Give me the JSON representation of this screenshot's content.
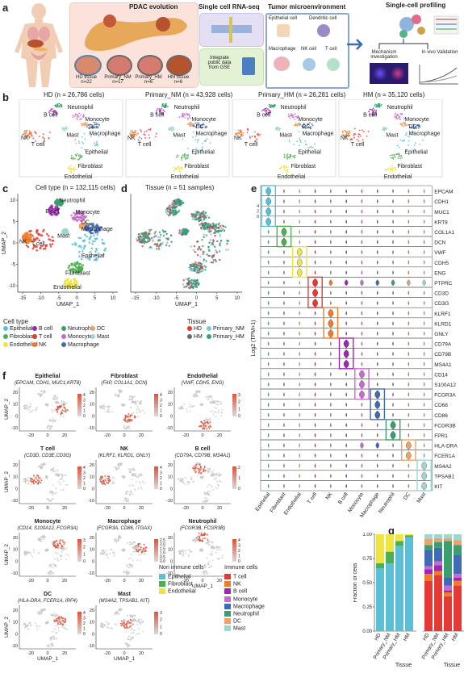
{
  "panel_letters": [
    "a",
    "b",
    "c",
    "d",
    "e",
    "f",
    "g"
  ],
  "colors": {
    "Epithelial": "#5bc0d6",
    "Fibroblast": "#4caf50",
    "Endothelial": "#f0e442",
    "B cell": "#9c27b0",
    "T cell": "#e53935",
    "NK": "#f07c2a",
    "Neutrophil": "#3a9f6f",
    "Monocyte": "#c76bd0",
    "Macrophage": "#3f6bb5",
    "DC": "#e9a46b",
    "Mast": "#9fd6cf",
    "HD": "#e53935",
    "HM": "#6b6b6b",
    "Primary_NM": "#7fc8d0",
    "Primary_HM": "#2aa77a"
  },
  "panel_a": {
    "pdac_title": "PDAC evolution",
    "tissues": [
      {
        "name": "HD tissue",
        "n": "n=22"
      },
      {
        "name": "Primary_NM",
        "n": "n=17"
      },
      {
        "name": "Primary_HM",
        "n": "n=6"
      },
      {
        "name": "HM tissue",
        "n": "n=6"
      }
    ],
    "scrna_title": "Single cell RNA-seq",
    "integrate_text": "Integrate public data from GSE",
    "tme_title": "Tumor microenvironment",
    "tme_cells": [
      "Epithelial cell",
      "Dendritic cell",
      "Macrophage",
      "NK cell",
      "T cell"
    ],
    "profiling_title": "Single-cell profiling",
    "mechanism_text": "Mechanism investigation",
    "invivo_text": "In vivo Validation"
  },
  "panel_b": [
    {
      "title": "HD (n = 26,786 cells)",
      "labels": [
        "Neutrophil",
        "B cell",
        "Monocyte",
        "DC",
        "Macrophage",
        "Mast",
        "NK",
        "T cell",
        "Epithelial",
        "Fibroblast",
        "Endothelial"
      ]
    },
    {
      "title": "Primary_NM (n = 43,928 cells)",
      "labels": [
        "Neutrophil",
        "B cell",
        "Monocyte",
        "DC",
        "Macrophage",
        "Mast",
        "NK",
        "T cell",
        "Epithelial",
        "Fibroblast",
        "Endothelial"
      ]
    },
    {
      "title": "Primary_HM (n = 26,281 cells)",
      "labels": [
        "Neutrophil",
        "B cell",
        "Monocyte",
        "DC",
        "Macrophage",
        "Mast",
        "NK",
        "T cell",
        "Epithelial",
        "Fibroblast",
        "Endothelial"
      ]
    },
    {
      "title": "HM (n = 35,120 cells)",
      "labels": [
        "Neutrophil",
        "B cell",
        "Monocyte",
        "DC",
        "Macrophage",
        "Mast",
        "NK",
        "T cell",
        "Epithelial",
        "Fibroblast",
        "Endothelial"
      ]
    }
  ],
  "panel_c": {
    "title": "Cell type (n = 132,115 cells)",
    "xlabel": "UMAP_1",
    "ylabel": "UMAP_2",
    "xticks": [
      "-15",
      "-10",
      "-5",
      "0",
      "5",
      "10"
    ],
    "yticks": [
      "10",
      "5",
      "0",
      "-5",
      "-10"
    ],
    "labels": [
      "Neutrophil",
      "B cell",
      "Monocyte",
      "DC",
      "Macrophage",
      "Mast",
      "NK",
      "T cell",
      "Epithelial",
      "Fibroblast",
      "Endothelial"
    ],
    "legend_title": "Cell type",
    "legend": [
      "Epithelial",
      "B cell",
      "Neutrophil",
      "DC",
      "Fibroblast",
      "T cell",
      "Monocyte",
      "Mast",
      "Endothelial",
      "NK",
      "Macrophage"
    ]
  },
  "panel_d": {
    "title": "Tissue (n = 51 samples)",
    "xlabel": "UMAP_1",
    "xticks": [
      "-15",
      "-10",
      "-5",
      "0",
      "5",
      "10"
    ],
    "legend_title": "Tissue",
    "legend": [
      "HD",
      "Primary_NM",
      "HM",
      "Primary_HM"
    ]
  },
  "panel_e": {
    "ylabel": "Log2 (TPM+1)",
    "genes": [
      "EPCAM",
      "CDH1",
      "MUC1",
      "KRT8",
      "COL1A1",
      "DCN",
      "VWF",
      "CDH5",
      "ENG",
      "PTPRC",
      "CD3D",
      "CD3G",
      "KLRF1",
      "KLRD1",
      "GNLY",
      "CD79A",
      "CD79B",
      "MS4A1",
      "CD14",
      "S100A12",
      "FCGR3A",
      "CD68",
      "CD86",
      "FCGR3B",
      "FPR1",
      "HLA-DRA",
      "FCER1A",
      "MS4A2",
      "TPSAB1",
      "KIT"
    ],
    "celltypes": [
      "Epithelial",
      "Fibroblast",
      "Endothelial",
      "T cell",
      "NK",
      "B cell",
      "Monocyte",
      "Macrophage",
      "Neutrophil",
      "DC",
      "Mast"
    ],
    "ticks": [
      "0",
      "2",
      "4"
    ]
  },
  "panel_f": {
    "xlabel": "UMAP_1",
    "ylabel": "UMAP_2",
    "plots": [
      {
        "name": "Epithelial",
        "genes": "(EPCAM, CDH1, MUC1,KRT8)",
        "scale": [
          "4",
          "3",
          "2",
          "1",
          "0"
        ]
      },
      {
        "name": "Fibroblast",
        "genes": "(FAP, COL1A1, DCN)",
        "scale": [
          "4",
          "3",
          "2",
          "1",
          "0"
        ]
      },
      {
        "name": "Endothelial",
        "genes": "(VWF, CDH5, ENG)",
        "scale": [
          "3",
          "2",
          "1",
          "0"
        ]
      },
      {
        "name": "T cell",
        "genes": "(CD3D, CD3E,CD3G)",
        "scale": [
          "4",
          "3",
          "2",
          "1",
          "0"
        ]
      },
      {
        "name": "NK",
        "genes": "(KLRF1, KLRD1, GNLY)",
        "scale": [
          "4",
          "3",
          "2",
          "1",
          "0"
        ]
      },
      {
        "name": "B cell",
        "genes": "(CD79A, CD79B, MS4A1)",
        "scale": [
          "2",
          "1",
          "0"
        ]
      },
      {
        "name": "Monocyte",
        "genes": "(CD14, S100A12, FCGR3A)",
        "scale": [
          "3",
          "2",
          "1",
          "0"
        ]
      },
      {
        "name": "Macrophage",
        "genes": "(FCGR3A, CD86, ITGAX)",
        "scale": [
          "2.5",
          "2.0",
          "1.5",
          "1.0",
          "0.5",
          "0.0"
        ]
      },
      {
        "name": "Neutrophil",
        "genes": "(FCGR3B, FCGR3B)",
        "scale": [
          "4",
          "3",
          "2",
          "1",
          "0"
        ]
      },
      {
        "name": "DC",
        "genes": "(HLA-DRA, FCER1A, IRF4)",
        "scale": [
          "4",
          "3",
          "2",
          "1",
          "0"
        ]
      },
      {
        "name": "Mast",
        "genes": "(MS4A2, TPSAB1, KIT)",
        "scale": [
          "3",
          "2",
          "1",
          "0"
        ]
      }
    ],
    "yticks": [
      "20",
      "10",
      "0",
      "-10"
    ],
    "xticks": [
      "-20",
      "0",
      "20"
    ],
    "legend_nonimmune_title": "Non immune cells",
    "legend_nonimmune": [
      "Epithelial",
      "Fibroblast",
      "Endothelial"
    ],
    "legend_immune_title": "Immune cells",
    "legend_immune": [
      "T cell",
      "NK",
      "B cell",
      "Monocyte",
      "Macrophage",
      "Neutrophil",
      "DC",
      "Mast"
    ]
  },
  "chart_data": {
    "type": "bar",
    "ylabel": "Fraction of cells",
    "xlabel": "Tissue",
    "yticks": [
      "1.00",
      "0.75",
      "0.50",
      "0.25",
      "0.00"
    ],
    "ylim": [
      0,
      1
    ],
    "categories": [
      "HD",
      "Primary_NM",
      "Primary_HM",
      "HM"
    ],
    "non_immune": [
      {
        "name": "Epithelial",
        "values": [
          0.65,
          0.7,
          0.88,
          0.97
        ]
      },
      {
        "name": "Fibroblast",
        "values": [
          0.05,
          0.12,
          0.05,
          0.02
        ]
      },
      {
        "name": "Endothelial",
        "values": [
          0.3,
          0.18,
          0.07,
          0.01
        ]
      }
    ],
    "immune": [
      {
        "name": "T cell",
        "values": [
          0.52,
          0.58,
          0.36,
          0.47
        ]
      },
      {
        "name": "NK",
        "values": [
          0.07,
          0.04,
          0.04,
          0.05
        ]
      },
      {
        "name": "B cell",
        "values": [
          0.05,
          0.06,
          0.02,
          0.03
        ]
      },
      {
        "name": "Monocyte",
        "values": [
          0.03,
          0.04,
          0.05,
          0.04
        ]
      },
      {
        "name": "Macrophage",
        "values": [
          0.17,
          0.14,
          0.08,
          0.2
        ]
      },
      {
        "name": "Neutrophil",
        "values": [
          0.05,
          0.06,
          0.38,
          0.1
        ]
      },
      {
        "name": "DC",
        "values": [
          0.06,
          0.04,
          0.03,
          0.05
        ]
      },
      {
        "name": "Mast",
        "values": [
          0.05,
          0.04,
          0.04,
          0.06
        ]
      }
    ]
  }
}
